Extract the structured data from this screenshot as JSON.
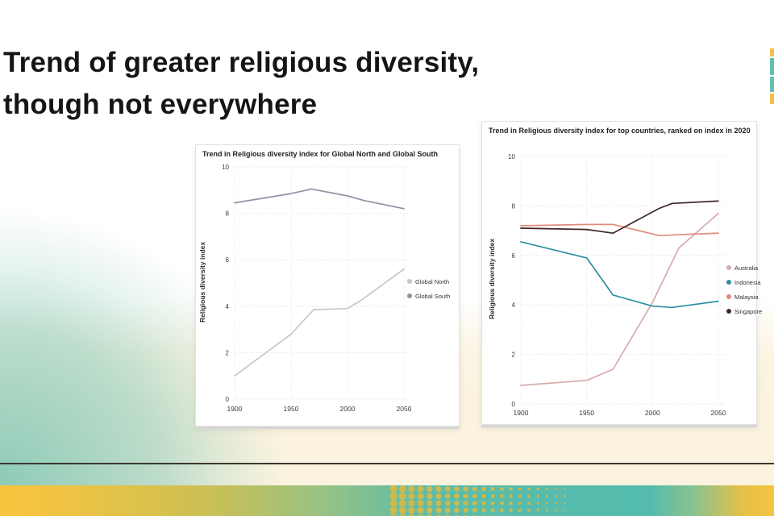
{
  "slide": {
    "title_line1": "Trend of greater religious diversity,",
    "title_line2": "though not everywhere"
  },
  "chart_data": [
    {
      "type": "line",
      "title": "Trend in Religious diversity index for Global North and Global South",
      "ylabel": "Religious diversity index",
      "xlabel": "",
      "xticks": [
        1900,
        1950,
        2000,
        2050
      ],
      "yticks": [
        0,
        2,
        4,
        6,
        8,
        10
      ],
      "ylim": [
        0,
        10
      ],
      "xlim": [
        1900,
        2050
      ],
      "grid": true,
      "legend_position": "right-middle",
      "series": [
        {
          "name": "Global North",
          "color": "#c6c6cc",
          "points": [
            [
              1900,
              1.0
            ],
            [
              1950,
              2.8
            ],
            [
              1970,
              3.85
            ],
            [
              2000,
              3.9
            ],
            [
              2012,
              4.25
            ],
            [
              2050,
              5.6
            ]
          ]
        },
        {
          "name": "Global South",
          "color": "#8e93a6",
          "points": [
            [
              1900,
              8.45
            ],
            [
              1950,
              8.85
            ],
            [
              1968,
              9.05
            ],
            [
              2000,
              8.75
            ],
            [
              2015,
              8.55
            ],
            [
              2050,
              8.2
            ]
          ]
        }
      ]
    },
    {
      "type": "line",
      "title": "Trend in Religious diversity index for top countries, ranked on index in 2020",
      "ylabel": "Religious diversity index",
      "xlabel": "",
      "xticks": [
        1900,
        1950,
        2000,
        2050
      ],
      "yticks": [
        0,
        2,
        4,
        6,
        8,
        10
      ],
      "ylim": [
        0,
        10
      ],
      "xlim": [
        1900,
        2050
      ],
      "grid": true,
      "legend_position": "right-middle",
      "series": [
        {
          "name": "Australia",
          "color": "#d7abab",
          "points": [
            [
              1900,
              0.75
            ],
            [
              1950,
              0.95
            ],
            [
              1970,
              1.4
            ],
            [
              2000,
              4.1
            ],
            [
              2020,
              6.3
            ],
            [
              2050,
              7.7
            ]
          ]
        },
        {
          "name": "Indonesia",
          "color": "#2e8fa2",
          "points": [
            [
              1900,
              6.55
            ],
            [
              1950,
              5.9
            ],
            [
              1970,
              4.4
            ],
            [
              2000,
              3.95
            ],
            [
              2015,
              3.9
            ],
            [
              2050,
              4.15
            ]
          ]
        },
        {
          "name": "Malaysia",
          "color": "#e08a7d",
          "points": [
            [
              1900,
              7.2
            ],
            [
              1950,
              7.25
            ],
            [
              1970,
              7.25
            ],
            [
              2005,
              6.8
            ],
            [
              2025,
              6.85
            ],
            [
              2050,
              6.9
            ]
          ]
        },
        {
          "name": "Singapore",
          "color": "#3f262a",
          "points": [
            [
              1900,
              7.1
            ],
            [
              1950,
              7.05
            ],
            [
              1970,
              6.9
            ],
            [
              2005,
              7.9
            ],
            [
              2015,
              8.1
            ],
            [
              2050,
              8.2
            ]
          ]
        }
      ]
    }
  ],
  "decor": {
    "divider_color": "#3b3830",
    "cream": "#fbf3df",
    "mint": "#8ecbb8",
    "strip_yellow": "#f9c43e",
    "strip_teal": "#54bcae",
    "dot_color": "#d9b843",
    "edge_bar_segments": [
      "#f2c14d",
      "#64bfae",
      "#64bfae",
      "#eec04a"
    ]
  }
}
